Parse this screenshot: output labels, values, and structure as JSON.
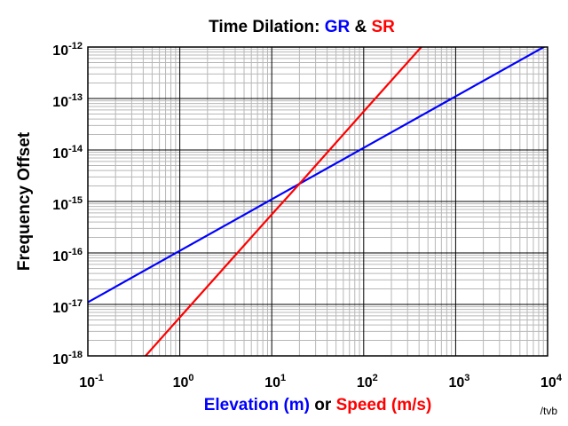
{
  "chart_data": {
    "type": "line",
    "title_parts": [
      {
        "text": "Time Dilation: ",
        "color": "#000000"
      },
      {
        "text": "GR",
        "color": "#0000ff"
      },
      {
        "text": " & ",
        "color": "#000000"
      },
      {
        "text": "SR",
        "color": "#ff0000"
      }
    ],
    "xlabel_parts": [
      {
        "text": "Elevation (m)",
        "color": "#0000ff"
      },
      {
        "text": " or ",
        "color": "#000000"
      },
      {
        "text": "Speed (m/s)",
        "color": "#ff0000"
      }
    ],
    "ylabel": "Frequency Offset",
    "credit": "/tvb",
    "x_scale": "log",
    "y_scale": "log",
    "xlim": [
      0.1,
      10000
    ],
    "ylim": [
      1e-18,
      1e-12
    ],
    "x_ticks": [
      {
        "base": "10",
        "exp": "-1"
      },
      {
        "base": "10",
        "exp": "0"
      },
      {
        "base": "10",
        "exp": "1"
      },
      {
        "base": "10",
        "exp": "2"
      },
      {
        "base": "10",
        "exp": "3"
      },
      {
        "base": "10",
        "exp": "4"
      }
    ],
    "y_ticks": [
      {
        "base": "10",
        "exp": "-18"
      },
      {
        "base": "10",
        "exp": "-17"
      },
      {
        "base": "10",
        "exp": "-16"
      },
      {
        "base": "10",
        "exp": "-15"
      },
      {
        "base": "10",
        "exp": "-14"
      },
      {
        "base": "10",
        "exp": "-13"
      },
      {
        "base": "10",
        "exp": "-12"
      }
    ],
    "grid": true,
    "series": [
      {
        "color": "#0000ff",
        "x": [
          0.1,
          1,
          10,
          100,
          1000,
          10000
        ],
        "y": [
          1.1e-17,
          1.1e-16,
          1.1e-15,
          1.1e-14,
          1.1e-13,
          1.1e-12
        ]
      },
      {
        "color": "#ff0000",
        "x": [
          0.4,
          1,
          10,
          20,
          100,
          440
        ],
        "y": [
          8.9e-19,
          5.6e-18,
          5.6e-16,
          2.2e-15,
          5.6e-14,
          1.08e-12
        ]
      }
    ]
  }
}
